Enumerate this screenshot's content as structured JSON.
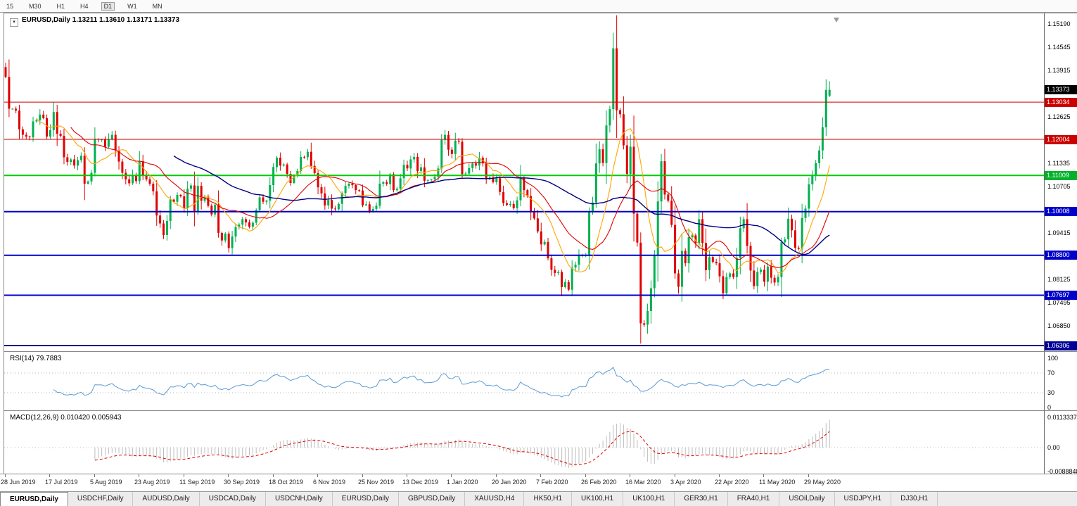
{
  "toolbar": {
    "timeframes": [
      "15",
      "M30",
      "H1",
      "H4",
      "D1",
      "W1",
      "MN"
    ],
    "active": "D1"
  },
  "chart": {
    "title_line": "EURUSD,Daily 1.13211 1.13610 1.13171 1.13373",
    "price_axis": {
      "labels": [
        "1.15190",
        "1.14545",
        "1.13915",
        "1.12625",
        "1.11335",
        "1.10705",
        "1.09415",
        "1.08125",
        "1.07495",
        "1.06850"
      ],
      "tags": [
        {
          "text": "1.13373",
          "price": 1.13373,
          "bg": "#000000"
        },
        {
          "text": "1.13034",
          "price": 1.13034,
          "bg": "#CC0000"
        },
        {
          "text": "1.12004",
          "price": 1.12004,
          "bg": "#CC0000"
        },
        {
          "text": "1.11009",
          "price": 1.11009,
          "bg": "#00B22A"
        },
        {
          "text": "1.10008",
          "price": 1.10008,
          "bg": "#0000CC"
        },
        {
          "text": "1.08800",
          "price": 1.088,
          "bg": "#0000CC"
        },
        {
          "text": "1.07697",
          "price": 1.07697,
          "bg": "#0000CC"
        },
        {
          "text": "1.06306",
          "price": 1.06306,
          "bg": "#000099"
        }
      ]
    },
    "hlines": [
      {
        "price": 1.13034,
        "color": "#CC0000",
        "width": 1
      },
      {
        "price": 1.12004,
        "color": "#CC0000",
        "width": 1
      },
      {
        "price": 1.11009,
        "color": "#00CC00",
        "width": 2
      },
      {
        "price": 1.10008,
        "color": "#0000CC",
        "width": 2
      },
      {
        "price": 1.088,
        "color": "#0000CC",
        "width": 2
      },
      {
        "price": 1.07697,
        "color": "#0000CC",
        "width": 2
      },
      {
        "price": 1.06306,
        "color": "#000080",
        "width": 2
      }
    ]
  },
  "chart_data": {
    "type": "candlestick",
    "symbol": "EURUSD",
    "timeframe": "Daily",
    "title": "EURUSD,Daily",
    "last_ohlc": {
      "open": 1.13211,
      "high": 1.1361,
      "low": 1.13171,
      "close": 1.13373
    },
    "first_open": 1.14,
    "price_top": 1.1535,
    "price_bottom": 1.0617,
    "label_step": 13,
    "x_labels": [
      "28 Jun 2019",
      "17 Jul 2019",
      "5 Aug 2019",
      "23 Aug 2019",
      "11 Sep 2019",
      "30 Sep 2019",
      "18 Oct 2019",
      "6 Nov 2019",
      "25 Nov 2019",
      "13 Dec 2019",
      "1 Jan 2020",
      "20 Jan 2020",
      "7 Feb 2020",
      "26 Feb 2020",
      "16 Mar 2020",
      "3 Apr 2020",
      "22 Apr 2020",
      "11 May 2020",
      "29 May 2020"
    ],
    "closes": [
      1.1373,
      1.1285,
      1.1285,
      1.128,
      1.1228,
      1.1213,
      1.1208,
      1.1206,
      1.125,
      1.1253,
      1.1269,
      1.1259,
      1.1208,
      1.1226,
      1.1276,
      1.1216,
      1.121,
      1.1151,
      1.1138,
      1.1145,
      1.1128,
      1.1143,
      1.1155,
      1.1078,
      1.1084,
      1.1108,
      1.1202,
      1.12,
      1.12,
      1.118,
      1.12,
      1.1213,
      1.117,
      1.1139,
      1.1108,
      1.109,
      1.1079,
      1.11,
      1.1085,
      1.114,
      1.1101,
      1.109,
      1.1078,
      1.1057,
      1.099,
      1.0968,
      1.0936,
      1.0975,
      1.1034,
      1.1028,
      1.1047,
      1.1043,
      1.1011,
      1.1064,
      1.1073,
      1.1002,
      1.1072,
      1.1031,
      1.1042,
      1.1017,
      1.0993,
      1.102,
      1.0942,
      1.0921,
      1.094,
      1.09,
      1.0932,
      1.0958,
      1.0965,
      1.098,
      1.0971,
      1.0959,
      1.097,
      1.1005,
      1.104,
      1.1028,
      1.1031,
      1.1074,
      1.1124,
      1.115,
      1.1128,
      1.1131,
      1.1105,
      1.108,
      1.11,
      1.1113,
      1.1152,
      1.1151,
      1.1166,
      1.1127,
      1.1107,
      1.1068,
      1.1051,
      1.1018,
      1.1033,
      1.1009,
      1.1007,
      1.1022,
      1.1052,
      1.1072,
      1.1078,
      1.1074,
      1.106,
      1.1059,
      1.1018,
      1.1021,
      1.1001,
      1.1008,
      1.1017,
      1.1078,
      1.1082,
      1.1077,
      1.1104,
      1.106,
      1.1064,
      1.1093,
      1.113,
      1.112,
      1.1145,
      1.1152,
      1.1113,
      1.1123,
      1.1086,
      1.1088,
      1.109,
      1.1097,
      1.112,
      1.1199,
      1.1213,
      1.1172,
      1.116,
      1.1197,
      1.1194,
      1.1104,
      1.1106,
      1.1121,
      1.1134,
      1.1128,
      1.115,
      1.1134,
      1.109,
      1.1095,
      1.1082,
      1.1093,
      1.1055,
      1.1024,
      1.1019,
      1.1022,
      1.101,
      1.1032,
      1.1094,
      1.106,
      1.1044,
      1.1001,
      1.0982,
      1.0946,
      1.091,
      1.0917,
      1.0872,
      1.084,
      1.0831,
      1.0834,
      1.0792,
      1.0806,
      1.0785,
      1.0846,
      1.0854,
      1.088,
      1.088,
      1.0881,
      1.1,
      1.1026,
      1.1134,
      1.1173,
      1.1135,
      1.1239,
      1.1284,
      1.1452,
      1.1281,
      1.127,
      1.1184,
      1.1105,
      1.118,
      1.0995,
      1.0915,
      1.0692,
      1.0688,
      1.0726,
      1.0789,
      1.088,
      1.1029,
      1.114,
      1.1048,
      1.1031,
      1.0964,
      1.083,
      1.0793,
      1.0892,
      1.0858,
      1.093,
      1.0935,
      1.0913,
      1.098,
      1.0914,
      1.0839,
      1.0875,
      1.0862,
      1.0858,
      1.0822,
      1.0775,
      1.082,
      1.083,
      1.082,
      1.0873,
      1.0955,
      1.098,
      1.0906,
      1.0838,
      1.0795,
      1.0834,
      1.084,
      1.0807,
      1.0849,
      1.0818,
      1.0805,
      1.082,
      1.0916,
      1.0924,
      1.0981,
      1.0949,
      1.0901,
      1.0898,
      1.0983,
      1.1009,
      1.1076,
      1.1101,
      1.1135,
      1.117,
      1.1234,
      1.1337,
      1.13373
    ],
    "extremes": [
      {
        "i": 0,
        "high": 1.1412
      },
      {
        "i": 177,
        "high": 1.1495
      },
      {
        "i": 185,
        "low": 1.0636
      }
    ],
    "colors": {
      "up": "#00B050",
      "down": "#E00000"
    },
    "moving_averages": [
      {
        "period": 10,
        "color": "#FFA500",
        "width": 1.1
      },
      {
        "period": 20,
        "color": "#E00000",
        "width": 1.1
      },
      {
        "period": 50,
        "color": "#000080",
        "width": 1.4
      }
    ],
    "indicators": {
      "rsi": {
        "label": "RSI(14) 79.7883",
        "period": 14,
        "last_value": 79.7883,
        "levels": [
          70,
          30
        ],
        "axis_labels": [
          "100",
          "70",
          "30",
          "0"
        ],
        "range": [
          0,
          100
        ],
        "color": "#5B9BD5"
      },
      "macd": {
        "label": "MACD(12,26,9) 0.010420 0.005943",
        "fast": 12,
        "slow": 26,
        "signal": 9,
        "last_macd": 0.01042,
        "last_signal": 0.005943,
        "axis_labels": [
          "0.0113337",
          "0.00",
          "-0.0088848"
        ],
        "histogram_color": "#BDBDBD",
        "signal_color": "#E00000"
      }
    }
  },
  "tabs": {
    "active_index": 0,
    "items": [
      "EURUSD,Daily",
      "USDCHF,Daily",
      "AUDUSD,Daily",
      "USDCAD,Daily",
      "USDCNH,Daily",
      "EURUSD,Daily",
      "GBPUSD,Daily",
      "XAUUSD,H4",
      "HK50,H1",
      "UK100,H1",
      "UK100,H1",
      "GER30,H1",
      "FRA40,H1",
      "USOil,Daily",
      "USDJPY,H1",
      "DJ30,H1"
    ]
  }
}
